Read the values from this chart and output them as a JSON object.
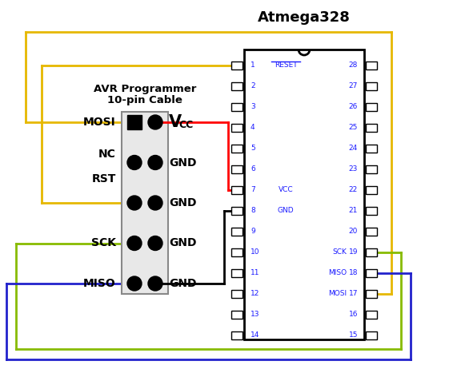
{
  "title": "Atmega328",
  "avr_title_line1": "AVR Programmer",
  "avr_title_line2": "10-pin Cable",
  "bg_color": "#ffffff",
  "wire_colors": {
    "vcc_red": "#ff0000",
    "gnd_black": "#000000",
    "mosi_yellow": "#e6b800",
    "sck_green": "#88bb00",
    "miso_blue": "#2222cc",
    "reset_yellow": "#e6b800"
  },
  "conn_left_labels": [
    "MOSI",
    "NC\nRST",
    "SCK",
    "MISO"
  ],
  "conn_right_labels": [
    "GND",
    "GND",
    "GND",
    "GND"
  ],
  "chip_left_labels": [
    "RESET",
    "",
    "",
    "",
    "",
    "",
    "VCC",
    "GND",
    "",
    "",
    "",
    "",
    "",
    ""
  ],
  "chip_right_labels": [
    "",
    "",
    "",
    "",
    "",
    "",
    "",
    "",
    "",
    "SCK",
    "MISO",
    "MOSI",
    "",
    ""
  ],
  "chip_text_color": "#1a1aff"
}
